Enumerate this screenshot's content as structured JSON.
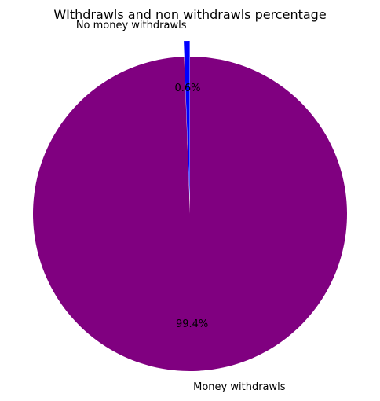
{
  "chart_data": {
    "type": "pie",
    "title": "WIthdrawls and non withdrawls percentage",
    "slices": [
      {
        "label": "No money withdrawls",
        "value": 0.6,
        "pct_label": "0.6%",
        "color": "#0000ff",
        "exploded": true
      },
      {
        "label": "Money withdrawls",
        "value": 99.4,
        "pct_label": "99.4%",
        "color": "#800080",
        "exploded": false
      }
    ],
    "start_angle_deg": 90,
    "direction": "counterclockwise",
    "legend": "none"
  }
}
